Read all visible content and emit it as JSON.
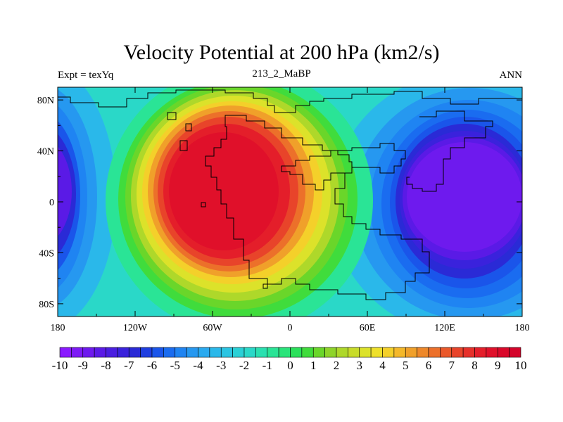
{
  "title": "Velocity Potential at 200 hPa (km2/s)",
  "subtitle_left": "Expt = texYq",
  "subtitle_center": "213_2_MaBP",
  "subtitle_right": "ANN",
  "x_ticks": [
    {
      "value": -180,
      "label": "180"
    },
    {
      "value": -120,
      "label": "120W"
    },
    {
      "value": -60,
      "label": "60W"
    },
    {
      "value": 0,
      "label": "0"
    },
    {
      "value": 60,
      "label": "60E"
    },
    {
      "value": 120,
      "label": "120E"
    },
    {
      "value": 180,
      "label": "180"
    }
  ],
  "y_ticks": [
    {
      "value": 80,
      "label": "80N"
    },
    {
      "value": 40,
      "label": "40N"
    },
    {
      "value": 0,
      "label": "0"
    },
    {
      "value": -40,
      "label": "40S"
    },
    {
      "value": -80,
      "label": "80S"
    }
  ],
  "colorbar": {
    "levels": [
      -10,
      -9.5,
      -9,
      -8.5,
      -8,
      -7.5,
      -7,
      -6.5,
      -6,
      -5.5,
      -5,
      -4.5,
      -4,
      -3.5,
      -3,
      -2.5,
      -2,
      -1.5,
      -1,
      -0.5,
      0,
      0.5,
      1,
      1.5,
      2,
      2.5,
      3,
      3.5,
      4,
      4.5,
      5,
      5.5,
      6,
      6.5,
      7,
      7.5,
      8,
      8.5,
      9,
      9.5,
      10
    ],
    "labels": [
      "-10",
      "-9",
      "-8",
      "-7",
      "-6",
      "-5",
      "-4",
      "-3",
      "-2",
      "-1",
      "0",
      "1",
      "2",
      "3",
      "4",
      "5",
      "6",
      "7",
      "8",
      "9",
      "10"
    ],
    "colors": [
      "#8a1aff",
      "#7d1af5",
      "#6e1aee",
      "#5a1ae6",
      "#4a1ee0",
      "#3a22dc",
      "#2a2ad6",
      "#1f3ee0",
      "#1a55ea",
      "#1a6cf0",
      "#1f84f2",
      "#2698f0",
      "#2aaaf0",
      "#2ab8ea",
      "#2ac4e2",
      "#2ad0d6",
      "#2ad8c8",
      "#2ae0b0",
      "#2ae496",
      "#2ae47a",
      "#2ae05a",
      "#40dc3c",
      "#6ad62a",
      "#8ed42a",
      "#aed82a",
      "#c8dc2a",
      "#dce22a",
      "#eee02a",
      "#f4d02a",
      "#f4b82a",
      "#f0a02a",
      "#ee882a",
      "#ec702a",
      "#ea582a",
      "#e8442a",
      "#e6302a",
      "#e41e2a",
      "#e0102a",
      "#da082a",
      "#d4042a"
    ]
  },
  "map": {
    "projection": "cylindrical-equidistant",
    "lon_range": [
      -180,
      180
    ],
    "lat_range": [
      -90,
      90
    ],
    "field_centers": [
      {
        "lon": -40,
        "lat": 5,
        "value": 10,
        "label": "max"
      },
      {
        "lon": 150,
        "lat": 10,
        "value": -10,
        "label": "min"
      },
      {
        "lon": -180,
        "lat": 10,
        "value": -10,
        "label": "min"
      }
    ]
  }
}
